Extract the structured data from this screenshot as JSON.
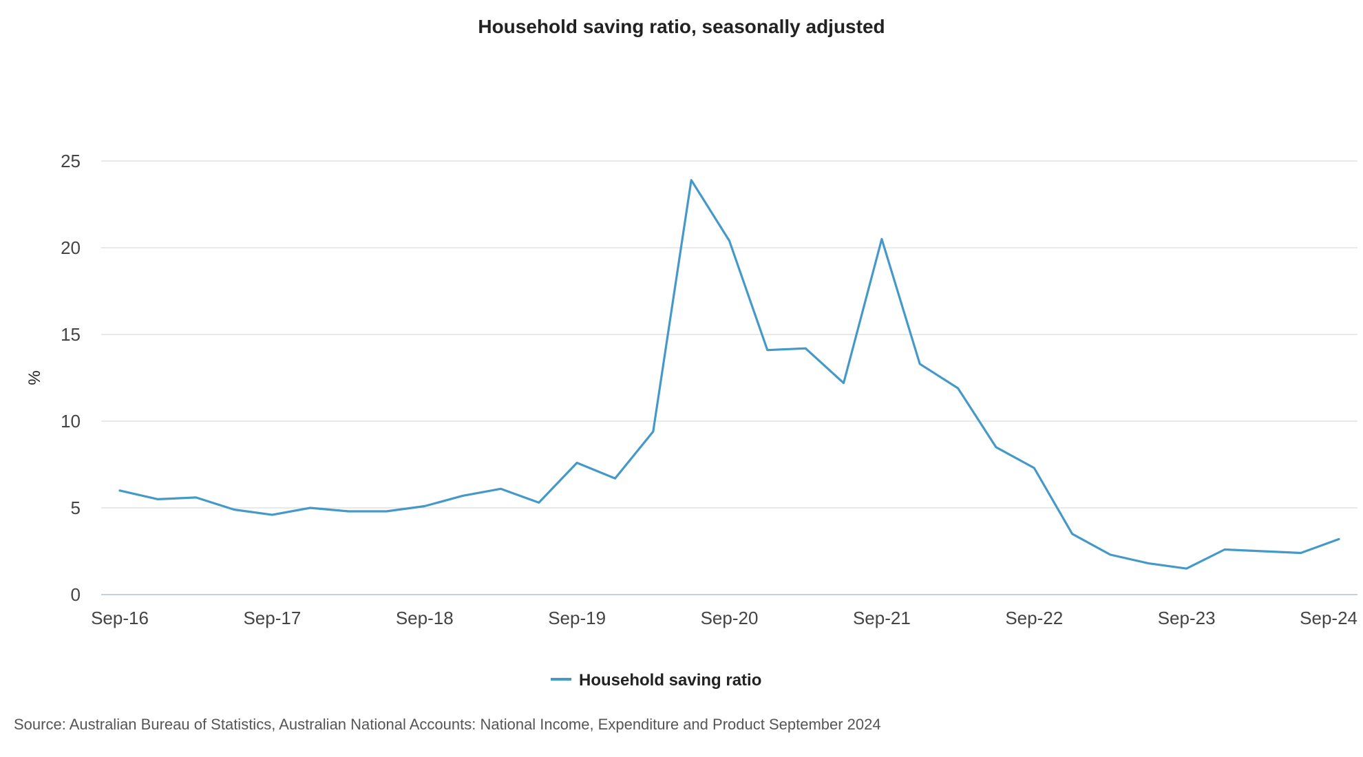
{
  "chart_data": {
    "type": "line",
    "title": "Household saving ratio, seasonally adjusted",
    "xlabel": "",
    "ylabel": "%",
    "ylim": [
      0,
      25
    ],
    "yticks": [
      "0",
      "5",
      "10",
      "15",
      "20",
      "25"
    ],
    "xticks": [
      "Sep-16",
      "Sep-17",
      "Sep-18",
      "Sep-19",
      "Sep-20",
      "Sep-21",
      "Sep-22",
      "Sep-23",
      "Sep-24"
    ],
    "grid": true,
    "legend_position": "bottom",
    "x": [
      "Sep-16",
      "Dec-16",
      "Mar-17",
      "Jun-17",
      "Sep-17",
      "Dec-17",
      "Mar-18",
      "Jun-18",
      "Sep-18",
      "Dec-18",
      "Mar-19",
      "Jun-19",
      "Sep-19",
      "Dec-19",
      "Mar-20",
      "Jun-20",
      "Sep-20",
      "Dec-20",
      "Mar-21",
      "Jun-21",
      "Sep-21",
      "Dec-21",
      "Mar-22",
      "Jun-22",
      "Sep-22",
      "Dec-22",
      "Mar-23",
      "Jun-23",
      "Sep-23",
      "Dec-23",
      "Mar-24",
      "Jun-24",
      "Sep-24"
    ],
    "series": [
      {
        "name": "Household saving ratio",
        "color": "#4499c9",
        "values": [
          6.0,
          5.5,
          5.6,
          4.9,
          4.6,
          5.0,
          4.8,
          4.8,
          5.1,
          5.7,
          6.1,
          5.3,
          7.6,
          6.7,
          9.4,
          23.9,
          20.4,
          14.1,
          14.2,
          12.2,
          20.5,
          13.3,
          11.9,
          8.5,
          7.3,
          3.5,
          2.3,
          1.8,
          1.5,
          2.6,
          2.5,
          2.4,
          3.2
        ]
      }
    ]
  },
  "source": "Source: Australian Bureau of Statistics, Australian National Accounts: National Income, Expenditure and Product September 2024"
}
